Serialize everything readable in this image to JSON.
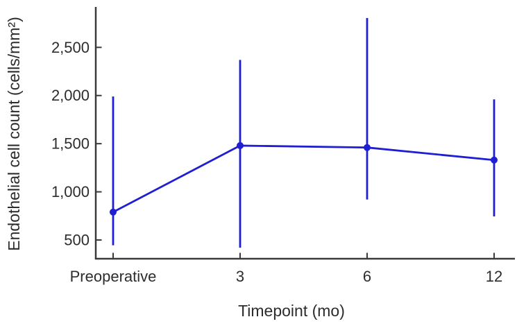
{
  "chart_data": {
    "type": "line",
    "title": "",
    "xlabel": "Timepoint (mo)",
    "ylabel": "Endothelial cell count (cells/mm²)",
    "categories": [
      "Preoperative",
      "3",
      "6",
      "12"
    ],
    "series": [
      {
        "name": "Endothelial cell count",
        "values": [
          790,
          1480,
          1460,
          1330
        ],
        "error_upper": [
          1990,
          2370,
          2805,
          1960
        ],
        "error_lower": [
          445,
          420,
          920,
          745
        ]
      }
    ],
    "y_ticks": [
      {
        "value": 500,
        "label": "500"
      },
      {
        "value": 1000,
        "label": "1,000"
      },
      {
        "value": 1500,
        "label": "1,500"
      },
      {
        "value": 2000,
        "label": "2,000"
      },
      {
        "value": 2500,
        "label": "2,500"
      }
    ],
    "ylim": [
      300,
      2920
    ],
    "grid": false,
    "legend": "none",
    "marker": "circle",
    "colors": {
      "line": "#1e1ed2",
      "axis": "#3a3a3a",
      "text": "#2c2c2c"
    }
  }
}
